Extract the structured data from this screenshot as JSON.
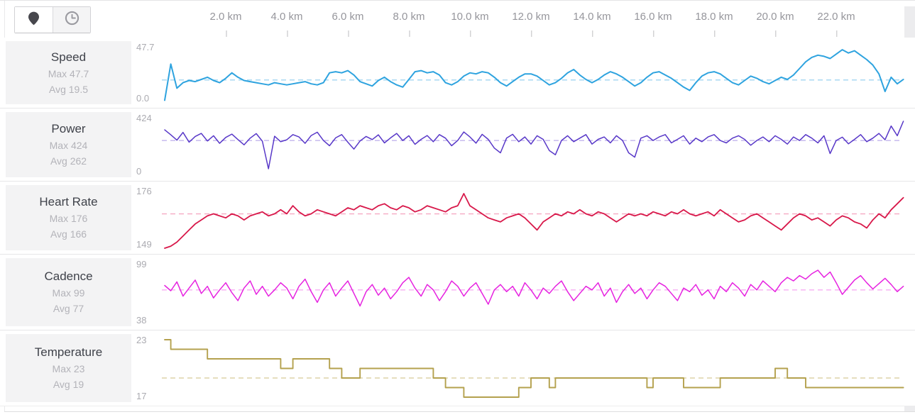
{
  "header": {
    "view_toggle": {
      "location_button": "location view",
      "time_button": "time view"
    }
  },
  "x_axis": {
    "unit": "km",
    "ticks": [
      {
        "label": "2.0 km",
        "km": 2
      },
      {
        "label": "4.0 km",
        "km": 4
      },
      {
        "label": "6.0 km",
        "km": 6
      },
      {
        "label": "8.0 km",
        "km": 8
      },
      {
        "label": "10.0 km",
        "km": 10
      },
      {
        "label": "12.0 km",
        "km": 12
      },
      {
        "label": "14.0 km",
        "km": 14
      },
      {
        "label": "16.0 km",
        "km": 16
      },
      {
        "label": "18.0 km",
        "km": 18
      },
      {
        "label": "20.0 km",
        "km": 20
      },
      {
        "label": "22.0 km",
        "km": 22
      }
    ]
  },
  "chart_data": [
    {
      "type": "line",
      "title": "Speed",
      "max_label": "Max 47.7",
      "avg_label": "Avg 19.5",
      "y_top_label": "47.7",
      "y_bottom_label": "0.0",
      "y_min": 0,
      "y_max": 47.7,
      "avg_value": 19.5,
      "color": "#2ea3df",
      "avg_line_color": "#a9d9f2",
      "step": false,
      "x_start_km": 0,
      "x_step_km": 0.2,
      "values": [
        1,
        34,
        12,
        17,
        19,
        18,
        20,
        22,
        19,
        17,
        21,
        26,
        22,
        19,
        18,
        17,
        16,
        15,
        17,
        16,
        15,
        16,
        17,
        18,
        16,
        15,
        17,
        26,
        27,
        26,
        28,
        24,
        18,
        16,
        14,
        19,
        22,
        18,
        15,
        13,
        20,
        27,
        28,
        26,
        27,
        24,
        17,
        15,
        18,
        23,
        26,
        25,
        27,
        26,
        22,
        17,
        14,
        18,
        22,
        25,
        25,
        23,
        19,
        15,
        17,
        21,
        26,
        29,
        24,
        20,
        17,
        20,
        24,
        27,
        25,
        22,
        18,
        14,
        17,
        22,
        26,
        27,
        24,
        21,
        17,
        13,
        10,
        17,
        23,
        26,
        27,
        25,
        21,
        17,
        15,
        19,
        23,
        21,
        18,
        16,
        19,
        22,
        20,
        24,
        30,
        36,
        40,
        42,
        41,
        39,
        43,
        47,
        44,
        46,
        42,
        38,
        33,
        25,
        9,
        22,
        16,
        20
      ]
    },
    {
      "type": "line",
      "title": "Power",
      "max_label": "Max 424",
      "avg_label": "Avg 262",
      "y_top_label": "424",
      "y_bottom_label": "0",
      "y_min": 0,
      "y_max": 424,
      "avg_value": 262,
      "color": "#5838c8",
      "avg_line_color": "#c6baee",
      "step": false,
      "x_start_km": 0,
      "x_step_km": 0.2,
      "values": [
        352,
        310,
        265,
        330,
        248,
        296,
        322,
        258,
        302,
        238,
        288,
        316,
        270,
        226,
        282,
        320,
        256,
        24,
        298,
        252,
        268,
        312,
        292,
        238,
        304,
        332,
        262,
        218,
        284,
        312,
        248,
        190,
        258,
        296,
        270,
        310,
        242,
        284,
        322,
        262,
        302,
        230,
        272,
        304,
        252,
        312,
        282,
        218,
        262,
        334,
        292,
        240,
        314,
        272,
        198,
        158,
        282,
        314,
        252,
        292,
        232,
        302,
        272,
        178,
        142,
        262,
        302,
        252,
        282,
        312,
        232,
        272,
        292,
        242,
        302,
        262,
        158,
        122,
        282,
        302,
        262,
        292,
        312,
        242,
        272,
        302,
        232,
        282,
        252,
        292,
        312,
        262,
        242,
        282,
        302,
        272,
        222,
        262,
        292,
        252,
        302,
        272,
        232,
        292,
        262,
        312,
        282,
        242,
        302,
        152,
        262,
        290,
        234,
        272,
        312,
        252,
        282,
        322,
        268,
        384,
        302,
        424
      ]
    },
    {
      "type": "line",
      "title": "Heart Rate",
      "max_label": "Max 176",
      "avg_label": "Avg 166",
      "y_top_label": "176",
      "y_bottom_label": "149",
      "y_min": 149,
      "y_max": 176,
      "avg_value": 166,
      "color": "#d8184a",
      "avg_line_color": "#f5a9c3",
      "step": false,
      "x_start_km": 0,
      "x_step_km": 0.2,
      "values": [
        149,
        150,
        152,
        155,
        158,
        161,
        163,
        165,
        166,
        165,
        164,
        166,
        165,
        163,
        165,
        166,
        167,
        165,
        166,
        168,
        166,
        170,
        167,
        165,
        166,
        168,
        167,
        166,
        165,
        167,
        169,
        168,
        170,
        169,
        168,
        170,
        171,
        169,
        168,
        170,
        169,
        167,
        168,
        170,
        169,
        168,
        167,
        169,
        170,
        176,
        170,
        168,
        166,
        164,
        163,
        162,
        164,
        165,
        166,
        164,
        161,
        158,
        162,
        164,
        166,
        165,
        167,
        166,
        168,
        166,
        165,
        167,
        166,
        164,
        162,
        164,
        166,
        165,
        166,
        165,
        167,
        166,
        165,
        167,
        166,
        168,
        166,
        165,
        166,
        167,
        165,
        168,
        166,
        164,
        162,
        163,
        165,
        166,
        164,
        162,
        160,
        158,
        161,
        164,
        166,
        165,
        163,
        164,
        162,
        160,
        163,
        165,
        164,
        162,
        161,
        159,
        163,
        166,
        164,
        168,
        171,
        174
      ]
    },
    {
      "type": "line",
      "title": "Cadence",
      "max_label": "Max 99",
      "avg_label": "Avg 77",
      "y_top_label": "99",
      "y_bottom_label": "38",
      "y_min": 38,
      "y_max": 99,
      "avg_value": 77,
      "color": "#e622e0",
      "avg_line_color": "#f6aef2",
      "step": false,
      "x_start_km": 0,
      "x_step_km": 0.2,
      "values": [
        82,
        76,
        86,
        70,
        79,
        88,
        73,
        81,
        68,
        77,
        85,
        74,
        65,
        79,
        87,
        72,
        81,
        70,
        77,
        85,
        79,
        67,
        81,
        89,
        75,
        63,
        77,
        85,
        70,
        79,
        87,
        73,
        59,
        75,
        83,
        71,
        79,
        67,
        75,
        85,
        91,
        79,
        70,
        83,
        77,
        65,
        75,
        87,
        81,
        70,
        79,
        85,
        73,
        61,
        77,
        83,
        75,
        81,
        70,
        85,
        77,
        67,
        79,
        73,
        81,
        87,
        75,
        65,
        73,
        81,
        77,
        85,
        70,
        79,
        63,
        75,
        83,
        73,
        79,
        67,
        77,
        85,
        81,
        73,
        65,
        79,
        75,
        83,
        71,
        77,
        67,
        81,
        75,
        85,
        79,
        70,
        83,
        77,
        87,
        81,
        75,
        85,
        91,
        87,
        93,
        89,
        95,
        99,
        91,
        97,
        85,
        72,
        80,
        88,
        93,
        85,
        78,
        84,
        90,
        83,
        75,
        81
      ]
    },
    {
      "type": "line",
      "title": "Temperature",
      "max_label": "Max 23",
      "avg_label": "Avg 19",
      "y_top_label": "23",
      "y_bottom_label": "17",
      "y_min": 17,
      "y_max": 23,
      "avg_value": 19,
      "color": "#b4a14e",
      "avg_line_color": "#ded4a9",
      "step": true,
      "x_start_km": 0,
      "x_step_km": 0.2,
      "values": [
        23,
        22,
        22,
        22,
        22,
        22,
        22,
        21,
        21,
        21,
        21,
        21,
        21,
        21,
        21,
        21,
        21,
        21,
        21,
        20,
        20,
        21,
        21,
        21,
        21,
        21,
        21,
        20,
        20,
        19,
        19,
        19,
        20,
        20,
        20,
        20,
        20,
        20,
        20,
        20,
        20,
        20,
        20,
        20,
        19,
        19,
        18,
        18,
        18,
        17,
        17,
        17,
        17,
        17,
        17,
        17,
        17,
        17,
        18,
        18,
        19,
        19,
        19,
        18,
        19,
        19,
        19,
        19,
        19,
        19,
        19,
        19,
        19,
        19,
        19,
        19,
        19,
        19,
        19,
        18,
        19,
        19,
        19,
        19,
        19,
        18,
        18,
        18,
        18,
        18,
        18,
        19,
        19,
        19,
        19,
        19,
        19,
        19,
        19,
        19,
        20,
        20,
        19,
        19,
        19,
        18,
        18,
        18,
        18,
        18,
        18,
        18,
        18,
        18,
        18,
        18,
        18,
        18,
        18,
        18,
        18,
        18
      ]
    }
  ]
}
